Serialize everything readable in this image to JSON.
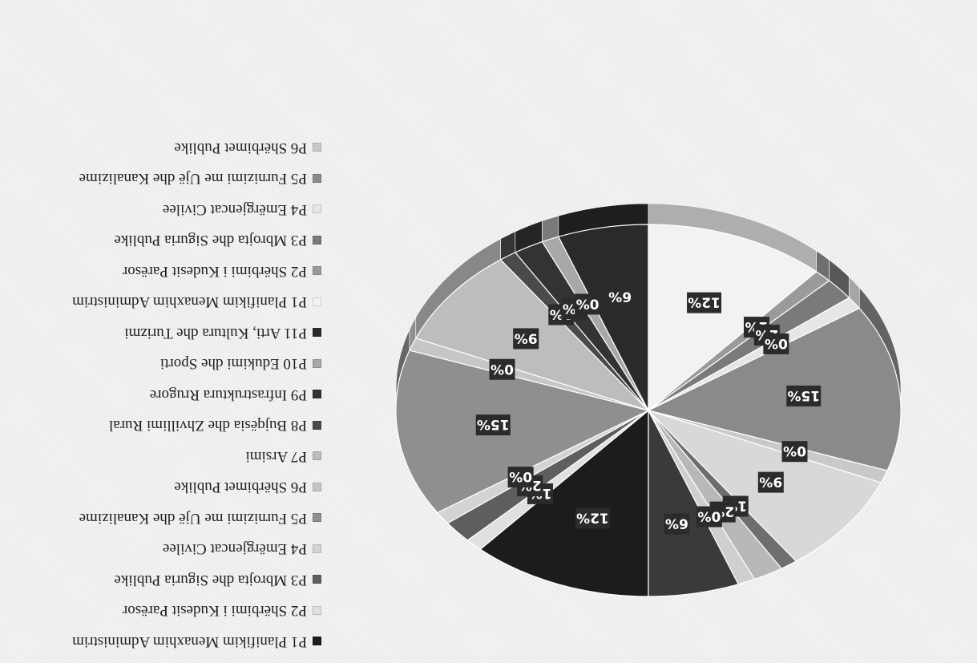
{
  "chart_data": {
    "type": "pie",
    "slices": [
      {
        "label": "P1 Planifikim Menaxhim Administrim",
        "value": 12,
        "color": "#1c1c1c"
      },
      {
        "label": "P2 Shërbimi i Kudesit Parësor",
        "value": 1,
        "color": "#e0e0e0"
      },
      {
        "label": "P3 Mbrojta dhe Siguria Publike",
        "value": 2,
        "color": "#5e5e5e"
      },
      {
        "label": "P4 Emërgjencat Civilee",
        "value": 0,
        "color": "#d3d3d3"
      },
      {
        "label": "P5 Furnizimi me Ujë dhe Kanalizime",
        "value": 15,
        "color": "#8f8f8f"
      },
      {
        "label": "P6 Shërbimet Publike",
        "value": 0,
        "color": "#c6c6c6"
      },
      {
        "label": "P7 Arsimi",
        "value": 9,
        "color": "#bdbdbd"
      },
      {
        "label": "P8 Bujqësia dhe Zhvillimi Rural",
        "value": 1,
        "color": "#4a4a4a"
      },
      {
        "label": "P9 Infrastruktura Rrugore",
        "value": 2,
        "color": "#333333"
      },
      {
        "label": "P10 Edukimi dhe Sporti",
        "value": 0,
        "color": "#a8a8a8"
      },
      {
        "label": "P11 Arti, Kultura dhe Turizmi",
        "value": 6,
        "color": "#2a2a2a"
      },
      {
        "label": "P1 Planifikim Menaxhim Administrim",
        "value": 12,
        "color": "#f2f2f2"
      },
      {
        "label": "P2 Shërbimi i Kudesit Parësor",
        "value": 1,
        "color": "#9a9a9a"
      },
      {
        "label": "P3 Mbrojta dhe Siguria Publike",
        "value": 2,
        "color": "#7a7a7a"
      },
      {
        "label": "P4 Emërgjencat Civilee",
        "value": 0,
        "color": "#e6e6e6"
      },
      {
        "label": "P5 Furnizimi me Ujë dhe Kanalizime",
        "value": 15,
        "color": "#8a8a8a"
      },
      {
        "label": "P6 Shërbimet Publike",
        "value": 0,
        "color": "#c9c9c9"
      },
      {
        "label": "",
        "value": 9,
        "color": "#d8d8d8"
      },
      {
        "label": "",
        "value": 1,
        "color": "#6e6e6e"
      },
      {
        "label": "",
        "value": 2,
        "color": "#b8b8b8"
      },
      {
        "label": "",
        "value": 0,
        "color": "#cfcfcf"
      },
      {
        "label": "",
        "value": 6,
        "color": "#3a3a3a"
      }
    ],
    "data_labels": [
      "12%",
      "1%",
      "2%",
      "0%",
      "15%",
      "0%",
      "9%",
      "1%",
      "2%",
      "0%",
      "6%",
      "12%",
      "1%",
      "2%",
      "0%",
      "15%",
      "0%",
      "9%",
      "1%",
      "2%",
      "0%",
      "6%"
    ],
    "legend_entries": [
      {
        "label": "P1 Planifikim Menaxhim Administrim",
        "color": "#1c1c1c"
      },
      {
        "label": "P2 Shërbimi i Kudesit Parësor",
        "color": "#e0e0e0"
      },
      {
        "label": "P3 Mbrojta dhe Siguria Publike",
        "color": "#5e5e5e"
      },
      {
        "label": "P4 Emërgjencat Civilee",
        "color": "#d3d3d3"
      },
      {
        "label": "P5 Furnizimi me Ujë dhe Kanalizime",
        "color": "#8f8f8f"
      },
      {
        "label": "P6 Shërbimet Publike",
        "color": "#c6c6c6"
      },
      {
        "label": "P7 Arsimi",
        "color": "#bdbdbd"
      },
      {
        "label": "P8 Bujqësia dhe Zhvillimi Rural",
        "color": "#4a4a4a"
      },
      {
        "label": "P9 Infrastruktura Rrugore",
        "color": "#333333"
      },
      {
        "label": "P10 Edukimi dhe Sporti",
        "color": "#a8a8a8"
      },
      {
        "label": "P11 Arti, Kultura dhe Turizmi",
        "color": "#2a2a2a"
      },
      {
        "label": "P1 Planifikim Menaxhim Administrim",
        "color": "#f2f2f2"
      },
      {
        "label": "P2 Shërbimi i Kudesit Parësor",
        "color": "#9a9a9a"
      },
      {
        "label": "P3 Mbrojta dhe Siguria Publike",
        "color": "#7a7a7a"
      },
      {
        "label": "P4 Emërgjencat Civilee",
        "color": "#e6e6e6"
      },
      {
        "label": "P5 Furnizimi me Ujë dhe Kanalizime",
        "color": "#8a8a8a"
      },
      {
        "label": "P6 Shërbimet Publike",
        "color": "#c9c9c9"
      }
    ],
    "legend_position": "right",
    "orientation": "rotated 180 degrees",
    "style": "3d-tilted"
  }
}
